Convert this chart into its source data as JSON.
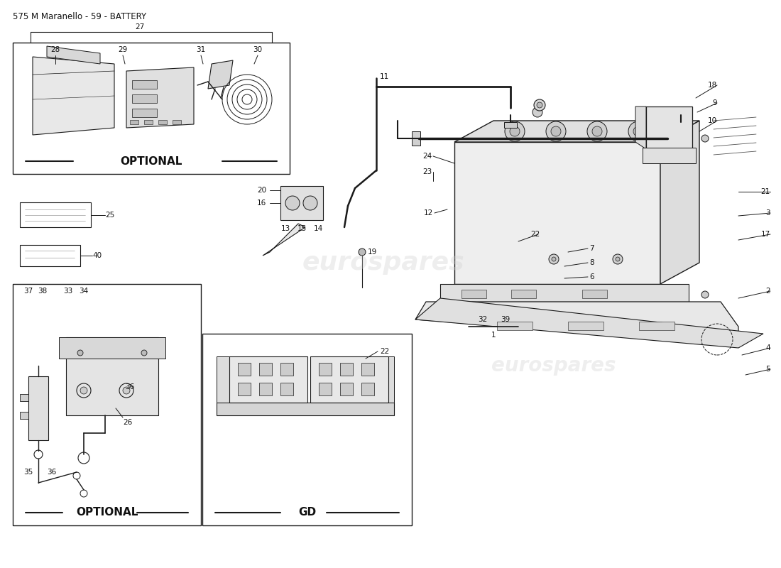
{
  "title": "575 M Maranello - 59 - BATTERY",
  "bg_color": "#ffffff",
  "line_color": "#1a1a1a",
  "text_color": "#111111",
  "watermark": "eurospares",
  "opt1_label": "OPTIONAL",
  "opt2_label": "OPTIONAL",
  "gd_label": "GD",
  "title_fontsize": 8.5,
  "label_fontsize": 7.5
}
